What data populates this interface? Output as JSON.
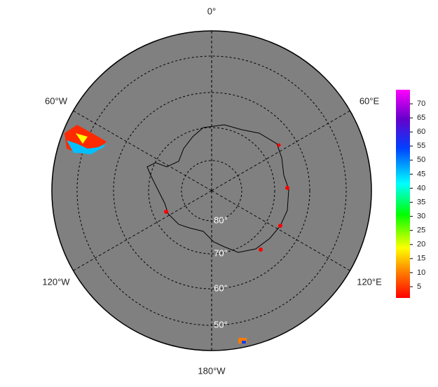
{
  "map": {
    "lon_labels": [
      "0°",
      "60°E",
      "120°E",
      "180°W",
      "120°W",
      "60°W"
    ],
    "lat_labels": [
      "80°",
      "70°",
      "60°",
      "50°"
    ],
    "colorbar": {
      "lim": [
        1,
        75
      ],
      "ticks": [
        5,
        10,
        15,
        20,
        25,
        30,
        35,
        40,
        45,
        50,
        55,
        60,
        65,
        70
      ]
    }
  }
}
